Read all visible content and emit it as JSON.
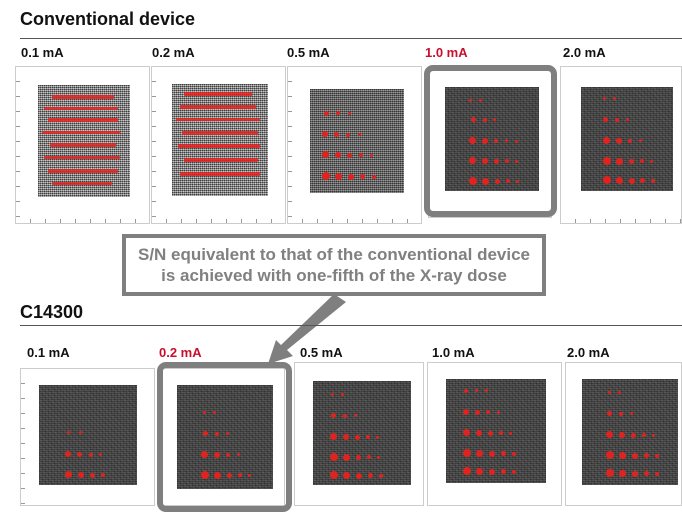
{
  "sections": [
    {
      "title": "Conventional device",
      "panels": [
        {
          "label": "0.1 mA",
          "highlight": false,
          "noise": "high"
        },
        {
          "label": "0.2 mA",
          "highlight": false,
          "noise": "high"
        },
        {
          "label": "0.5 mA",
          "highlight": false,
          "noise": "mid"
        },
        {
          "label": "1.0 mA",
          "highlight": true,
          "noise": "low"
        },
        {
          "label": "2.0 mA",
          "highlight": false,
          "noise": "low"
        }
      ]
    },
    {
      "title": "C14300",
      "panels": [
        {
          "label": "0.1 mA",
          "highlight": false,
          "noise": "low"
        },
        {
          "label": "0.2 mA",
          "highlight": true,
          "noise": "low"
        },
        {
          "label": "0.5 mA",
          "highlight": false,
          "noise": "low"
        },
        {
          "label": "1.0 mA",
          "highlight": false,
          "noise": "low"
        },
        {
          "label": "2.0 mA",
          "highlight": false,
          "noise": "low"
        }
      ]
    }
  ],
  "callout": {
    "line1": "S/N equivalent to that of the conventional device",
    "line2": "is achieved with one-fifth of the X-ray dose"
  },
  "colors": {
    "highlight_label": "#c8102e",
    "marker_red": "#e0231e",
    "frame_gray": "#7f7f7f"
  }
}
